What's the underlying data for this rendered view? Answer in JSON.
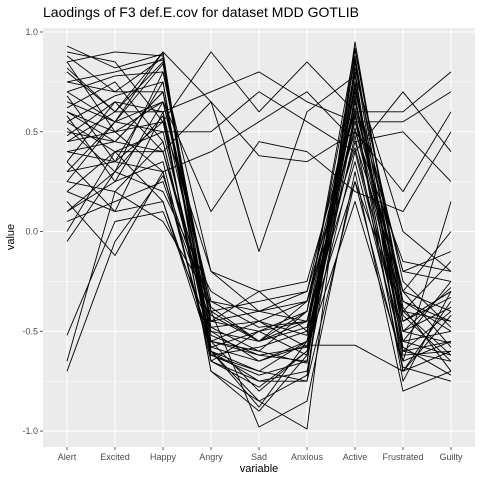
{
  "chart_data": {
    "type": "line",
    "title": "Laodings of F3 def.E.cov for dataset MDD GOTLIB",
    "xlabel": "variable",
    "ylabel": "value",
    "categories": [
      "Alert",
      "Excited",
      "Happy",
      "Angry",
      "Sad",
      "Anxious",
      "Active",
      "Frustrated",
      "Guilty"
    ],
    "ylim": [
      -1.08,
      1.02
    ],
    "yticks": [
      1.0,
      0.5,
      0.0,
      -0.5,
      -1.0
    ],
    "ytick_labels": [
      "1.0",
      "0.5",
      "0.0",
      "-0.5",
      "-1.0"
    ],
    "grid": true,
    "legend": "none",
    "colors": {
      "panel": "#ebebeb",
      "grid": "#ffffff",
      "line": "#000000",
      "tick_text": "#4d4d4d"
    },
    "series": [
      {
        "values": [
          0.93,
          0.82,
          0.89,
          -0.62,
          -0.7,
          -0.75,
          0.95,
          -0.42,
          -0.65
        ]
      },
      {
        "values": [
          0.85,
          0.9,
          0.88,
          -0.55,
          -0.6,
          -0.66,
          0.88,
          -0.5,
          -0.56
        ]
      },
      {
        "values": [
          0.88,
          0.7,
          0.87,
          -0.6,
          -0.85,
          -0.72,
          0.91,
          -0.38,
          -0.7
        ]
      },
      {
        "values": [
          0.75,
          0.8,
          0.86,
          -0.48,
          -0.45,
          -0.52,
          0.82,
          -0.25,
          -0.48
        ]
      },
      {
        "values": [
          0.82,
          0.6,
          0.9,
          -0.65,
          -0.78,
          -0.6,
          0.78,
          -0.6,
          -0.4
        ]
      },
      {
        "values": [
          0.7,
          0.78,
          0.8,
          -0.4,
          -0.55,
          -0.45,
          0.7,
          -0.3,
          -0.58
        ]
      },
      {
        "values": [
          0.65,
          0.55,
          0.84,
          -0.58,
          -0.5,
          -0.4,
          0.86,
          -0.45,
          -0.3
        ]
      },
      {
        "values": [
          0.55,
          0.68,
          0.75,
          -0.62,
          -0.72,
          -0.65,
          0.74,
          -0.55,
          -0.62
        ]
      },
      {
        "values": [
          0.6,
          0.45,
          0.7,
          -0.52,
          -0.62,
          -0.58,
          0.8,
          -0.7,
          -0.35
        ]
      },
      {
        "values": [
          0.48,
          0.65,
          0.6,
          -0.45,
          -0.4,
          -0.35,
          0.65,
          -0.2,
          -0.25
        ]
      },
      {
        "values": [
          0.52,
          0.3,
          0.58,
          -0.7,
          -0.9,
          -0.62,
          0.6,
          -0.65,
          -0.55
        ]
      },
      {
        "values": [
          0.45,
          0.5,
          0.65,
          -0.35,
          -0.48,
          -0.45,
          0.55,
          -0.4,
          -0.45
        ]
      },
      {
        "values": [
          0.4,
          0.35,
          0.55,
          -0.6,
          -0.7,
          -0.55,
          0.72,
          -0.5,
          -0.38
        ]
      },
      {
        "values": [
          0.3,
          0.55,
          0.5,
          -0.5,
          -0.55,
          -0.4,
          0.62,
          -0.35,
          -0.5
        ]
      },
      {
        "values": [
          0.25,
          0.2,
          0.45,
          -0.55,
          -0.62,
          -0.65,
          0.68,
          -0.58,
          -0.72
        ]
      },
      {
        "values": [
          0.2,
          0.4,
          0.4,
          -0.4,
          -0.35,
          -0.3,
          0.5,
          -0.15,
          -0.2
        ]
      },
      {
        "values": [
          0.1,
          0.25,
          0.35,
          -0.65,
          -0.75,
          -0.7,
          0.58,
          -0.62,
          -0.6
        ]
      },
      {
        "values": [
          0.05,
          0.15,
          0.25,
          -0.45,
          -0.5,
          -0.45,
          0.45,
          -0.3,
          -0.4
        ]
      },
      {
        "values": [
          -0.05,
          0.3,
          0.2,
          -0.3,
          -0.45,
          -0.35,
          0.52,
          -0.45,
          -0.3
        ]
      },
      {
        "values": [
          0.35,
          0.1,
          0.15,
          -0.55,
          -0.8,
          -0.6,
          0.4,
          -0.55,
          -0.5
        ]
      },
      {
        "values": [
          0.15,
          -0.12,
          0.3,
          -0.62,
          -0.58,
          -0.5,
          0.66,
          -0.4,
          -0.62
        ]
      },
      {
        "values": [
          -0.52,
          0.05,
          0.1,
          -0.5,
          -0.65,
          -0.55,
          0.48,
          -0.7,
          -0.42
        ]
      },
      {
        "values": [
          -0.65,
          0.2,
          0.05,
          -0.35,
          -0.4,
          -0.45,
          0.35,
          -0.6,
          -0.55
        ]
      },
      {
        "values": [
          -0.7,
          -0.05,
          0.28,
          -0.42,
          -0.55,
          -0.35,
          0.42,
          -0.5,
          -0.28
        ]
      },
      {
        "values": [
          0.6,
          0.5,
          0.55,
          -0.2,
          -0.3,
          -0.25,
          0.6,
          -0.75,
          -0.3
        ]
      },
      {
        "values": [
          0.9,
          0.85,
          0.55,
          0.9,
          0.6,
          0.85,
          0.6,
          0.6,
          0.8
        ]
      },
      {
        "values": [
          0.8,
          0.6,
          0.6,
          0.7,
          0.8,
          0.65,
          0.55,
          0.55,
          0.7
        ]
      },
      {
        "values": [
          0.5,
          0.45,
          0.4,
          0.65,
          0.38,
          0.35,
          0.5,
          0.2,
          0.6
        ]
      },
      {
        "values": [
          0.3,
          0.35,
          0.3,
          0.4,
          0.55,
          0.7,
          0.45,
          0.5,
          0.25
        ]
      },
      {
        "values": [
          0.7,
          0.55,
          0.65,
          0.1,
          0.45,
          0.4,
          0.2,
          0.1,
          0.5
        ]
      },
      {
        "values": [
          0.55,
          0.4,
          0.5,
          0.5,
          0.7,
          0.55,
          0.4,
          0.7,
          0.4
        ]
      },
      {
        "values": [
          0.4,
          0.45,
          0.7,
          -0.4,
          -0.98,
          -0.85,
          0.3,
          -0.8,
          -0.7
        ]
      },
      {
        "values": [
          0.2,
          0.1,
          0.6,
          -0.7,
          -0.85,
          -0.99,
          0.85,
          -0.6,
          -0.65
        ]
      },
      {
        "values": [
          0.85,
          0.5,
          0.3,
          -0.6,
          -0.75,
          -0.75,
          0.25,
          -0.68,
          -0.75
        ]
      },
      {
        "values": [
          0.62,
          0.75,
          0.45,
          -0.55,
          -0.45,
          -0.58,
          0.15,
          -0.65,
          0.15
        ]
      },
      {
        "values": [
          0.25,
          0.55,
          0.9,
          0.65,
          -0.1,
          0.6,
          0.78,
          0.0,
          -0.2
        ]
      },
      {
        "values": [
          0.45,
          0.6,
          0.85,
          -0.45,
          -0.3,
          -0.5,
          0.25,
          -0.4,
          -0.15
        ]
      },
      {
        "values": [
          0.75,
          0.7,
          0.7,
          -0.58,
          -0.65,
          -0.57,
          -0.57,
          -0.7,
          -0.6
        ]
      },
      {
        "values": [
          0.1,
          0.3,
          0.8,
          -0.2,
          -0.4,
          -0.3,
          0.7,
          -0.2,
          -0.1
        ]
      },
      {
        "values": [
          0.0,
          0.4,
          0.15,
          -0.6,
          -0.88,
          -0.55,
          0.65,
          -0.45,
          -0.33
        ]
      },
      {
        "values": [
          0.35,
          0.65,
          0.4,
          -0.48,
          -0.6,
          -0.4,
          0.92,
          -0.35,
          -0.45
        ]
      },
      {
        "values": [
          0.68,
          0.35,
          0.75,
          -0.65,
          -0.5,
          -0.62,
          0.75,
          -0.55,
          -0.25
        ]
      },
      {
        "values": [
          0.58,
          0.25,
          0.65,
          -0.38,
          -0.55,
          -0.48,
          0.58,
          -0.3,
          0.0
        ]
      }
    ]
  }
}
